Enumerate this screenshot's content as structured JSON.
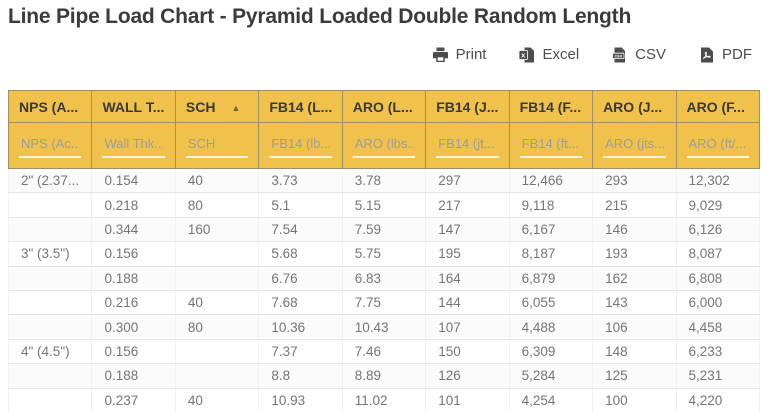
{
  "page_title": "Line Pipe Load Chart - Pyramid Loaded Double Random Length",
  "export_buttons": [
    {
      "label": "Print",
      "icon": "printer-icon"
    },
    {
      "label": "Excel",
      "icon": "excel-file-icon"
    },
    {
      "label": "CSV",
      "icon": "csv-file-icon"
    },
    {
      "label": "PDF",
      "icon": "pdf-file-icon"
    }
  ],
  "colors": {
    "header_bg": "#F0C24B",
    "header_border": "#9c9160",
    "header_text": "#3a3a3a",
    "body_text": "#757575",
    "title_text": "#3b3b3b",
    "export_text": "#4d4d4d"
  },
  "table": {
    "sort_asc_glyph": "▲",
    "columns": [
      {
        "key": "nps",
        "label": "NPS (A...",
        "filter_placeholder": "NPS (Ac...",
        "sorted": null
      },
      {
        "key": "wall_thk",
        "label": "WALL T...",
        "filter_placeholder": "Wall Thk...",
        "sorted": null
      },
      {
        "key": "sch",
        "label": "SCH",
        "filter_placeholder": "SCH",
        "sorted": "asc"
      },
      {
        "key": "fb14_lbs",
        "label": "FB14 (L...",
        "filter_placeholder": "FB14 (lb...",
        "sorted": null
      },
      {
        "key": "aro_lbs",
        "label": "ARO (L...",
        "filter_placeholder": "ARO (lbs...",
        "sorted": null
      },
      {
        "key": "fb14_jts",
        "label": "FB14 (J...",
        "filter_placeholder": "FB14 (jt...",
        "sorted": null
      },
      {
        "key": "fb14_ft",
        "label": "FB14 (F...",
        "filter_placeholder": "FB14 (ft...",
        "sorted": null
      },
      {
        "key": "aro_jts",
        "label": "ARO (J...",
        "filter_placeholder": "ARO (jts...",
        "sorted": null
      },
      {
        "key": "aro_ft",
        "label": "ARO (F...",
        "filter_placeholder": "ARO (ft/...",
        "sorted": null
      }
    ],
    "rows": [
      [
        "2\" (2.37...",
        "0.154",
        "40",
        "3.73",
        "3.78",
        "297",
        "12,466",
        "293",
        "12,302"
      ],
      [
        "",
        "0.218",
        "80",
        "5.1",
        "5.15",
        "217",
        "9,118",
        "215",
        "9,029"
      ],
      [
        "",
        "0.344",
        "160",
        "7.54",
        "7.59",
        "147",
        "6,167",
        "146",
        "6,126"
      ],
      [
        "3\" (3.5\")",
        "0.156",
        "",
        "5.68",
        "5.75",
        "195",
        "8,187",
        "193",
        "8,087"
      ],
      [
        "",
        "0.188",
        "",
        "6.76",
        "6.83",
        "164",
        "6,879",
        "162",
        "6,808"
      ],
      [
        "",
        "0.216",
        "40",
        "7.68",
        "7.75",
        "144",
        "6,055",
        "143",
        "6,000"
      ],
      [
        "",
        "0.300",
        "80",
        "10.36",
        "10.43",
        "107",
        "4,488",
        "106",
        "4,458"
      ],
      [
        "4\" (4.5\")",
        "0.156",
        "",
        "7.37",
        "7.46",
        "150",
        "6,309",
        "148",
        "6,233"
      ],
      [
        "",
        "0.188",
        "",
        "8.8",
        "8.89",
        "126",
        "5,284",
        "125",
        "5,231"
      ],
      [
        "",
        "0.237",
        "40",
        "10.93",
        "11.02",
        "101",
        "4,254",
        "100",
        "4,220"
      ]
    ]
  }
}
